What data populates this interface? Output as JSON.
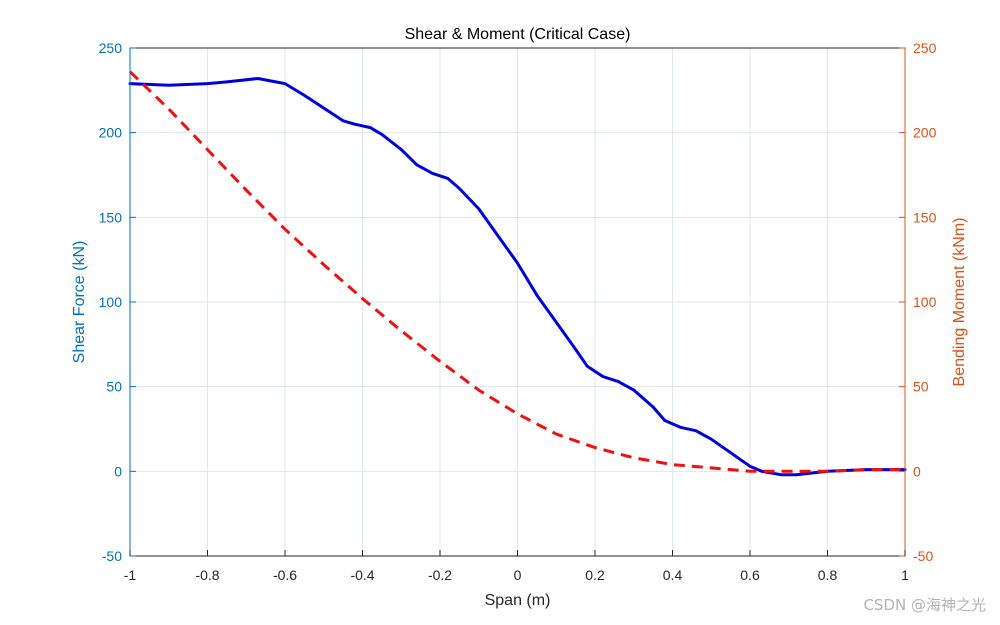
{
  "chart_data": {
    "type": "line",
    "title": "Shear & Moment (Critical Case)",
    "xlabel": "Span (m)",
    "ylabel_left": "Shear Force (kN)",
    "ylabel_right": "Bending Moment (kNm)",
    "xlim": [
      -1,
      1
    ],
    "ylim_left": [
      -50,
      250
    ],
    "ylim_right": [
      -50,
      250
    ],
    "x_ticks": [
      -1,
      -0.8,
      -0.6,
      -0.4,
      -0.2,
      0,
      0.2,
      0.4,
      0.6,
      0.8,
      1
    ],
    "x_tick_labels": [
      "-1",
      "-0.8",
      "-0.6",
      "-0.4",
      "-0.2",
      "0",
      "0.2",
      "0.4",
      "0.6",
      "0.8",
      "1"
    ],
    "y_ticks": [
      -50,
      0,
      50,
      100,
      150,
      200,
      250
    ],
    "y_tick_labels": [
      "-50",
      "0",
      "50",
      "100",
      "150",
      "200",
      "250"
    ],
    "grid": true,
    "colors": {
      "left_axis": "#0072BD",
      "right_axis": "#D95319",
      "shear": "#0000DD",
      "moment": "#EE1111"
    },
    "series": [
      {
        "axis": "left",
        "style": "solid",
        "x": [
          -1,
          -0.9,
          -0.8,
          -0.75,
          -0.67,
          -0.6,
          -0.55,
          -0.45,
          -0.42,
          -0.38,
          -0.35,
          -0.3,
          -0.26,
          -0.22,
          -0.18,
          -0.15,
          -0.1,
          -0.05,
          0,
          0.05,
          0.1,
          0.15,
          0.18,
          0.22,
          0.26,
          0.3,
          0.35,
          0.38,
          0.42,
          0.46,
          0.5,
          0.55,
          0.6,
          0.63,
          0.68,
          0.72,
          0.8,
          0.9,
          1
        ],
        "y": [
          229,
          228,
          229,
          230,
          232,
          229,
          222,
          207,
          205,
          203,
          199,
          190,
          181,
          176,
          173,
          167,
          155,
          139,
          123,
          104,
          88,
          72,
          62,
          56,
          53,
          48,
          38,
          30,
          26,
          24,
          19,
          11,
          3,
          0,
          -2,
          -2,
          0,
          1,
          1
        ]
      },
      {
        "axis": "right",
        "style": "dashed",
        "x": [
          -1,
          -0.9,
          -0.8,
          -0.7,
          -0.6,
          -0.5,
          -0.4,
          -0.3,
          -0.2,
          -0.1,
          0,
          0.1,
          0.2,
          0.3,
          0.4,
          0.5,
          0.6,
          0.7,
          0.8,
          0.9,
          1
        ],
        "y": [
          236,
          214,
          190,
          166,
          143,
          122,
          102,
          83,
          65,
          48,
          34,
          22,
          14,
          8,
          4,
          2,
          0,
          0,
          0,
          1,
          1
        ]
      }
    ]
  },
  "watermark": "CSDN @海神之光"
}
